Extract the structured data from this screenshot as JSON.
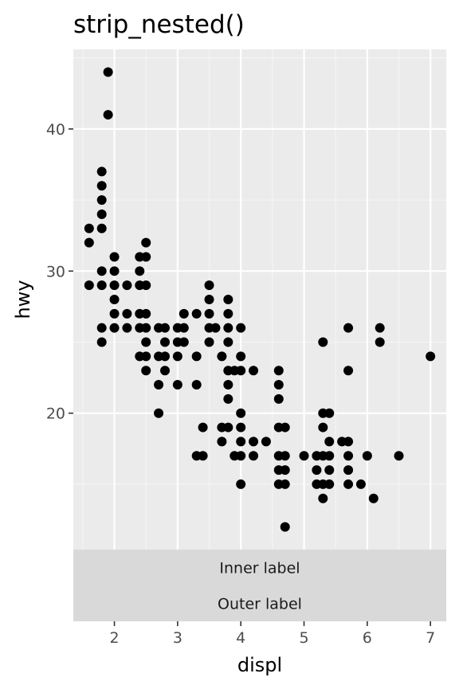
{
  "chart_data": {
    "type": "scatter",
    "title": "strip_nested()",
    "xlabel": "displ",
    "ylabel": "hwy",
    "xlim": [
      1.35,
      7.25
    ],
    "ylim": [
      10.4,
      45.6
    ],
    "x_ticks": [
      2,
      3,
      4,
      5,
      6,
      7
    ],
    "y_ticks": [
      20,
      30,
      40
    ],
    "strips": [
      "Inner label",
      "Outer label"
    ],
    "grid": true,
    "colors": {
      "panel_background": "#ebebeb",
      "grid_major": "#ffffff",
      "grid_minor": "#f5f5f5",
      "strip_background": "#d9d9d9",
      "point": "#000000",
      "tick": "#333333"
    },
    "points": [
      [
        1.6,
        33
      ],
      [
        1.6,
        32
      ],
      [
        1.6,
        29
      ],
      [
        1.8,
        37
      ],
      [
        1.8,
        36
      ],
      [
        1.8,
        35
      ],
      [
        1.8,
        34
      ],
      [
        1.8,
        33
      ],
      [
        1.8,
        30
      ],
      [
        1.8,
        29
      ],
      [
        1.8,
        26
      ],
      [
        1.8,
        25
      ],
      [
        1.9,
        44
      ],
      [
        1.9,
        41
      ],
      [
        2.0,
        31
      ],
      [
        2.0,
        30
      ],
      [
        2.0,
        29
      ],
      [
        2.0,
        28
      ],
      [
        2.0,
        27
      ],
      [
        2.0,
        26
      ],
      [
        2.2,
        29
      ],
      [
        2.2,
        27
      ],
      [
        2.2,
        26
      ],
      [
        2.4,
        31
      ],
      [
        2.4,
        30
      ],
      [
        2.4,
        29
      ],
      [
        2.4,
        27
      ],
      [
        2.4,
        26
      ],
      [
        2.4,
        24
      ],
      [
        2.5,
        32
      ],
      [
        2.5,
        31
      ],
      [
        2.5,
        29
      ],
      [
        2.5,
        27
      ],
      [
        2.5,
        26
      ],
      [
        2.5,
        25
      ],
      [
        2.5,
        24
      ],
      [
        2.5,
        23
      ],
      [
        2.7,
        26
      ],
      [
        2.7,
        24
      ],
      [
        2.7,
        22
      ],
      [
        2.7,
        20
      ],
      [
        2.8,
        26
      ],
      [
        2.8,
        25
      ],
      [
        2.8,
        24
      ],
      [
        2.8,
        23
      ],
      [
        3.0,
        26
      ],
      [
        3.0,
        25
      ],
      [
        3.0,
        24
      ],
      [
        3.0,
        22
      ],
      [
        3.1,
        27
      ],
      [
        3.1,
        26
      ],
      [
        3.1,
        25
      ],
      [
        3.3,
        27
      ],
      [
        3.3,
        24
      ],
      [
        3.3,
        22
      ],
      [
        3.3,
        17
      ],
      [
        3.4,
        19
      ],
      [
        3.4,
        17
      ],
      [
        3.5,
        29
      ],
      [
        3.5,
        28
      ],
      [
        3.5,
        27
      ],
      [
        3.5,
        26
      ],
      [
        3.5,
        25
      ],
      [
        3.6,
        26
      ],
      [
        3.7,
        24
      ],
      [
        3.7,
        19
      ],
      [
        3.7,
        18
      ],
      [
        3.8,
        28
      ],
      [
        3.8,
        27
      ],
      [
        3.8,
        26
      ],
      [
        3.8,
        25
      ],
      [
        3.8,
        23
      ],
      [
        3.8,
        22
      ],
      [
        3.8,
        21
      ],
      [
        3.8,
        19
      ],
      [
        3.9,
        23
      ],
      [
        3.9,
        17
      ],
      [
        4.0,
        26
      ],
      [
        4.0,
        24
      ],
      [
        4.0,
        23
      ],
      [
        4.0,
        20
      ],
      [
        4.0,
        19
      ],
      [
        4.0,
        18
      ],
      [
        4.0,
        17
      ],
      [
        4.0,
        15
      ],
      [
        4.2,
        23
      ],
      [
        4.2,
        18
      ],
      [
        4.2,
        17
      ],
      [
        4.4,
        18
      ],
      [
        4.6,
        23
      ],
      [
        4.6,
        22
      ],
      [
        4.6,
        21
      ],
      [
        4.6,
        19
      ],
      [
        4.6,
        17
      ],
      [
        4.6,
        16
      ],
      [
        4.6,
        15
      ],
      [
        4.7,
        19
      ],
      [
        4.7,
        17
      ],
      [
        4.7,
        16
      ],
      [
        4.7,
        15
      ],
      [
        4.7,
        12
      ],
      [
        5.0,
        17
      ],
      [
        5.2,
        17
      ],
      [
        5.2,
        16
      ],
      [
        5.2,
        15
      ],
      [
        5.3,
        25
      ],
      [
        5.3,
        20
      ],
      [
        5.3,
        19
      ],
      [
        5.3,
        17
      ],
      [
        5.3,
        15
      ],
      [
        5.3,
        14
      ],
      [
        5.4,
        20
      ],
      [
        5.4,
        18
      ],
      [
        5.4,
        17
      ],
      [
        5.4,
        16
      ],
      [
        5.4,
        15
      ],
      [
        5.6,
        18
      ],
      [
        5.7,
        26
      ],
      [
        5.7,
        23
      ],
      [
        5.7,
        18
      ],
      [
        5.7,
        17
      ],
      [
        5.7,
        16
      ],
      [
        5.7,
        15
      ],
      [
        5.9,
        15
      ],
      [
        6.0,
        17
      ],
      [
        6.1,
        14
      ],
      [
        6.2,
        26
      ],
      [
        6.2,
        25
      ],
      [
        6.5,
        17
      ],
      [
        7.0,
        24
      ]
    ]
  }
}
